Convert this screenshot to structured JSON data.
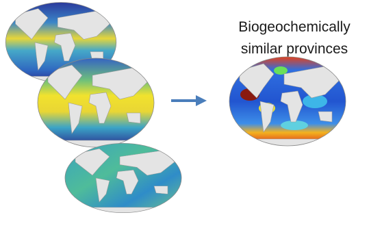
{
  "label": {
    "lines": [
      "Biogeochemically",
      "similar provinces"
    ]
  }
}
